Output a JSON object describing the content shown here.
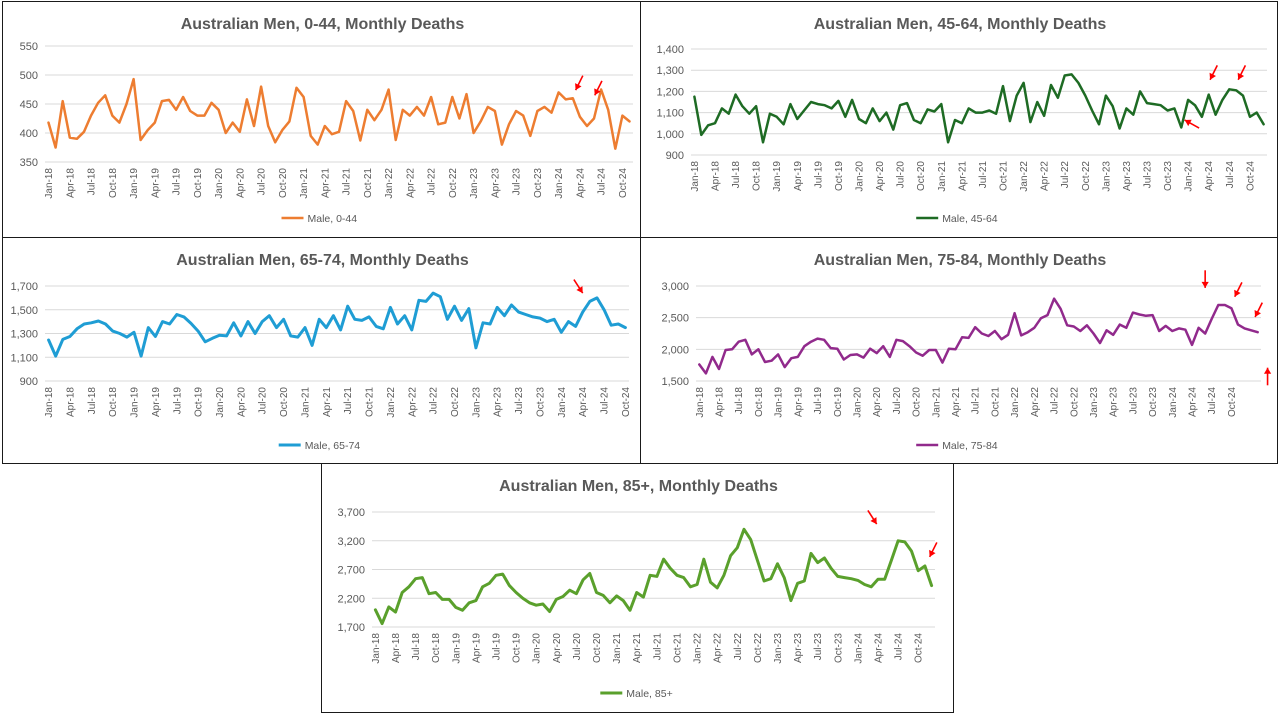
{
  "chart_data": [
    {
      "type": "line",
      "title": "Australian Men, 0-44, Monthly Deaths",
      "series_name": "Male, 0-44",
      "color": "#ED7D31",
      "line_width": 2.5,
      "ylim": [
        350,
        550
      ],
      "yticks": [
        "350",
        "400",
        "450",
        "500",
        "550"
      ],
      "ytick_values": [
        350,
        400,
        450,
        500,
        550
      ],
      "xticks": [
        "Jan-18",
        "Apr-18",
        "Jul-18",
        "Oct-18",
        "Jan-19",
        "Apr-19",
        "Jul-19",
        "Oct-19",
        "Jan-20",
        "Apr-20",
        "Jul-20",
        "Oct-20",
        "Jan-21",
        "Apr-21",
        "Jul-21",
        "Oct-21",
        "Jan-22",
        "Apr-22",
        "Jul-22",
        "Oct-22",
        "Jan-23",
        "Apr-23",
        "Jul-23",
        "Oct-23",
        "Jan-24",
        "Apr-24",
        "Jul-24",
        "Oct-24"
      ],
      "values": [
        418,
        375,
        455,
        392,
        390,
        402,
        430,
        452,
        465,
        430,
        418,
        450,
        493,
        388,
        405,
        418,
        455,
        457,
        440,
        462,
        438,
        430,
        430,
        452,
        440,
        400,
        418,
        402,
        458,
        412,
        480,
        412,
        384,
        405,
        420,
        478,
        462,
        395,
        380,
        412,
        398,
        402,
        455,
        438,
        387,
        440,
        422,
        440,
        475,
        388,
        440,
        430,
        445,
        430,
        462,
        415,
        418,
        462,
        425,
        467,
        400,
        420,
        445,
        438,
        380,
        415,
        438,
        430,
        395,
        438,
        445,
        435,
        470,
        458,
        460,
        428,
        412,
        425,
        475,
        440,
        373,
        430,
        420
      ],
      "arrows": [
        {
          "x": 74.4,
          "y": 474
        },
        {
          "x": 77.1,
          "y": 465
        }
      ]
    },
    {
      "type": "line",
      "title": "Australian Men, 45-64, Monthly Deaths",
      "series_name": "Male, 45-64",
      "color": "#1E6B24",
      "line_width": 2.5,
      "ylim": [
        900,
        1400
      ],
      "yticks": [
        "900",
        "1,000",
        "1,100",
        "1,200",
        "1,300",
        "1,400"
      ],
      "ytick_values": [
        900,
        1000,
        1100,
        1200,
        1300,
        1400
      ],
      "xticks": [
        "Jan-18",
        "Apr-18",
        "Jul-18",
        "Oct-18",
        "Jan-19",
        "Apr-19",
        "Jul-19",
        "Oct-19",
        "Jan-20",
        "Apr-20",
        "Jul-20",
        "Oct-20",
        "Jan-21",
        "Apr-21",
        "Jul-21",
        "Oct-21",
        "Jan-22",
        "Apr-22",
        "Jul-22",
        "Oct-22",
        "Jan-23",
        "Apr-23",
        "Jul-23",
        "Oct-23",
        "Jan-24",
        "Apr-24",
        "Jul-24",
        "Oct-24"
      ],
      "values": [
        1175,
        995,
        1040,
        1050,
        1120,
        1095,
        1185,
        1130,
        1095,
        1130,
        960,
        1095,
        1080,
        1045,
        1140,
        1070,
        1110,
        1150,
        1140,
        1135,
        1120,
        1155,
        1080,
        1160,
        1070,
        1050,
        1120,
        1060,
        1100,
        1020,
        1135,
        1145,
        1065,
        1050,
        1115,
        1105,
        1140,
        960,
        1065,
        1050,
        1120,
        1100,
        1100,
        1110,
        1095,
        1225,
        1060,
        1180,
        1240,
        1055,
        1150,
        1085,
        1230,
        1170,
        1275,
        1280,
        1240,
        1180,
        1110,
        1045,
        1180,
        1130,
        1025,
        1120,
        1090,
        1200,
        1145,
        1140,
        1135,
        1110,
        1120,
        1030,
        1160,
        1135,
        1080,
        1185,
        1090,
        1160,
        1210,
        1205,
        1180,
        1080,
        1100,
        1045
      ],
      "arrows": [
        {
          "x": 75.2,
          "y": 1255
        },
        {
          "x": 79.3,
          "y": 1255
        },
        {
          "x": 71.5,
          "y": 1065
        }
      ]
    },
    {
      "type": "line",
      "title": "Australian Men, 65-74, Monthly Deaths",
      "series_name": "Male, 65-74",
      "color": "#1F9DD4",
      "line_width": 3,
      "ylim": [
        900,
        1700
      ],
      "yticks": [
        "900",
        "1,100",
        "1,300",
        "1,500",
        "1,700"
      ],
      "ytick_values": [
        900,
        1100,
        1300,
        1500,
        1700
      ],
      "xticks": [
        "Jan-18",
        "Apr-18",
        "Jul-18",
        "Oct-18",
        "Jan-19",
        "Apr-19",
        "Jul-19",
        "Oct-19",
        "Jan-20",
        "Apr-20",
        "Jul-20",
        "Oct-20",
        "Jan-21",
        "Apr-21",
        "Jul-21",
        "Oct-21",
        "Jan-22",
        "Apr-22",
        "Jul-22",
        "Oct-22",
        "Jan-23",
        "Apr-23",
        "Jul-23",
        "Oct-23",
        "Jan-24",
        "Apr-24",
        "Jul-24",
        "Oct-24"
      ],
      "values": [
        1245,
        1110,
        1250,
        1275,
        1340,
        1380,
        1390,
        1405,
        1380,
        1320,
        1300,
        1270,
        1310,
        1110,
        1350,
        1275,
        1400,
        1380,
        1460,
        1440,
        1385,
        1320,
        1230,
        1260,
        1285,
        1280,
        1390,
        1280,
        1400,
        1300,
        1400,
        1450,
        1350,
        1420,
        1280,
        1270,
        1350,
        1200,
        1420,
        1350,
        1450,
        1330,
        1530,
        1420,
        1410,
        1440,
        1360,
        1340,
        1520,
        1380,
        1450,
        1330,
        1580,
        1570,
        1640,
        1610,
        1420,
        1530,
        1410,
        1510,
        1180,
        1390,
        1380,
        1520,
        1450,
        1540,
        1480,
        1460,
        1440,
        1430,
        1400,
        1420,
        1310,
        1400,
        1360,
        1480,
        1570,
        1600,
        1500,
        1370,
        1380,
        1350
      ],
      "arrows": [
        {
          "x": 75.0,
          "y": 1640
        }
      ]
    },
    {
      "type": "line",
      "title": "Australian Men, 75-84, Monthly Deaths",
      "series_name": "Male, 75-84",
      "color": "#912A8C",
      "line_width": 2.5,
      "ylim": [
        1500,
        3000
      ],
      "yticks": [
        "1,500",
        "2,000",
        "2,500",
        "3,000"
      ],
      "ytick_values": [
        1500,
        2000,
        2500,
        3000
      ],
      "xticks": [
        "Jan-18",
        "Apr-18",
        "Jul-18",
        "Oct-18",
        "Jan-19",
        "Apr-19",
        "Jul-19",
        "Oct-19",
        "Jan-20",
        "Apr-20",
        "Jul-20",
        "Oct-20",
        "Jan-21",
        "Apr-21",
        "Jul-21",
        "Oct-21",
        "Jan-22",
        "Apr-22",
        "Jul-22",
        "Oct-22",
        "Jan-23",
        "Apr-23",
        "Jul-23",
        "Oct-23",
        "Jan-24",
        "Apr-24",
        "Jul-24",
        "Oct-24"
      ],
      "values": [
        1760,
        1620,
        1880,
        1690,
        1990,
        2000,
        2120,
        2150,
        1920,
        2000,
        1800,
        1820,
        1920,
        1720,
        1860,
        1880,
        2050,
        2120,
        2170,
        2150,
        2020,
        2010,
        1840,
        1910,
        1920,
        1870,
        2010,
        1940,
        2050,
        1880,
        2150,
        2130,
        2050,
        1950,
        1900,
        1990,
        1990,
        1790,
        2010,
        2000,
        2190,
        2180,
        2350,
        2250,
        2210,
        2290,
        2160,
        2230,
        2570,
        2220,
        2270,
        2340,
        2490,
        2540,
        2800,
        2640,
        2380,
        2360,
        2290,
        2380,
        2250,
        2100,
        2300,
        2230,
        2390,
        2340,
        2580,
        2550,
        2530,
        2540,
        2290,
        2370,
        2290,
        2330,
        2310,
        2070,
        2340,
        2250,
        2480,
        2700,
        2700,
        2650,
        2390,
        2330,
        2300,
        2270
      ],
      "arrows": [
        {
          "x": 77.0,
          "y": 2970
        },
        {
          "x": 81.5,
          "y": 2830
        },
        {
          "x": 84.6,
          "y": 2510
        },
        {
          "x": 86.5,
          "y": 1710
        }
      ]
    },
    {
      "type": "line",
      "title": "Australian Men, 85+, Monthly Deaths",
      "series_name": "Male, 85+",
      "color": "#5AA02C",
      "line_width": 3,
      "ylim": [
        1700,
        3700
      ],
      "yticks": [
        "1,700",
        "2,200",
        "2,700",
        "3,200",
        "3,700"
      ],
      "ytick_values": [
        1700,
        2200,
        2700,
        3200,
        3700
      ],
      "xticks": [
        "Jan-18",
        "Apr-18",
        "Jul-18",
        "Oct-18",
        "Jan-19",
        "Apr-19",
        "Jul-19",
        "Oct-19",
        "Jan-20",
        "Apr-20",
        "Jul-20",
        "Oct-20",
        "Jan-21",
        "Apr-21",
        "Jul-21",
        "Oct-21",
        "Jan-22",
        "Apr-22",
        "Jul-22",
        "Oct-22",
        "Jan-23",
        "Apr-23",
        "Jul-23",
        "Oct-23",
        "Jan-24",
        "Apr-24",
        "Jul-24",
        "Oct-24"
      ],
      "values": [
        2000,
        1760,
        2050,
        1960,
        2300,
        2400,
        2540,
        2560,
        2280,
        2300,
        2180,
        2180,
        2040,
        1990,
        2120,
        2160,
        2400,
        2460,
        2600,
        2620,
        2420,
        2300,
        2200,
        2120,
        2080,
        2100,
        1970,
        2180,
        2230,
        2340,
        2280,
        2520,
        2630,
        2300,
        2250,
        2120,
        2240,
        2160,
        1990,
        2300,
        2220,
        2600,
        2580,
        2880,
        2720,
        2600,
        2560,
        2400,
        2440,
        2880,
        2480,
        2380,
        2600,
        2940,
        3080,
        3400,
        3220,
        2860,
        2500,
        2540,
        2800,
        2560,
        2160,
        2460,
        2500,
        2980,
        2820,
        2900,
        2720,
        2580,
        2560,
        2540,
        2510,
        2440,
        2400,
        2530,
        2530,
        2860,
        3200,
        3180,
        3020,
        2680,
        2760,
        2420
      ],
      "arrows": [
        {
          "x": 74.8,
          "y": 3490
        },
        {
          "x": 82.7,
          "y": 2920
        }
      ]
    }
  ]
}
